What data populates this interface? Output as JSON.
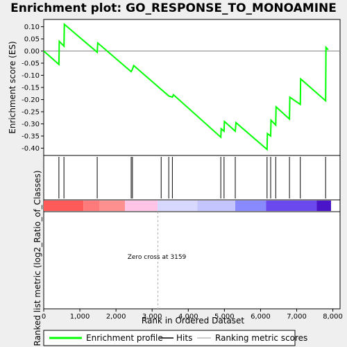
{
  "chart_data": {
    "type": "line",
    "title": "Enrichment plot: GO_RESPONSE_TO_MONOAMINE",
    "xlabel": "Rank in Ordered Dataset",
    "ylabel_top": "Enrichment score (ES)",
    "ylabel_bottom": "Ranked list metric (log2_Ratio_of_Classes)",
    "xlim": [
      0,
      8200
    ],
    "ylim": [
      -0.43,
      0.13
    ],
    "x_ticks": [
      0,
      1000,
      2000,
      3000,
      4000,
      5000,
      6000,
      7000,
      8000
    ],
    "x_tick_labels": [
      "0",
      "1,000",
      "2,000",
      "3,000",
      "4,000",
      "5,000",
      "6,000",
      "7,000",
      "8,000"
    ],
    "y_ticks": [
      0.1,
      0.05,
      0.0,
      -0.05,
      -0.1,
      -0.15,
      -0.2,
      -0.25,
      -0.3,
      -0.35,
      -0.4
    ],
    "y_tick_labels": [
      "0.10",
      "0.05",
      "0.00",
      "-0.05",
      "-0.10",
      "-0.15",
      "-0.20",
      "-0.25",
      "-0.30",
      "-0.35",
      "-0.40"
    ],
    "grid": false,
    "zero_line": true,
    "series": [
      {
        "name": "Enrichment profile",
        "color": "#00ff00",
        "x": [
          0,
          420,
          430,
          560,
          570,
          1480,
          1495,
          2420,
          2455,
          2490,
          3460,
          3560,
          3590,
          4900,
          4910,
          4990,
          5000,
          5300,
          5320,
          6180,
          6190,
          6280,
          6290,
          6420,
          6430,
          6800,
          6810,
          7100,
          7110,
          7800,
          7810,
          7870
        ],
        "y": [
          0.0,
          -0.055,
          0.04,
          0.02,
          0.11,
          -0.005,
          0.033,
          -0.085,
          -0.075,
          -0.06,
          -0.185,
          -0.19,
          -0.18,
          -0.355,
          -0.32,
          -0.33,
          -0.29,
          -0.33,
          -0.295,
          -0.405,
          -0.34,
          -0.35,
          -0.285,
          -0.305,
          -0.23,
          -0.28,
          -0.19,
          -0.22,
          -0.115,
          -0.205,
          0.015,
          0.005
        ]
      }
    ],
    "hits": [
      420,
      560,
      1480,
      2420,
      2455,
      3250,
      3460,
      3560,
      4900,
      4990,
      5300,
      6180,
      6280,
      6420,
      6800,
      7100,
      7800
    ],
    "hits_series_name": "Hits",
    "ranking_series_name": "Ranking metric scores",
    "heatmap_segments": [
      {
        "from": 0,
        "to": 1100,
        "color": "#ff5a5a"
      },
      {
        "from": 1100,
        "to": 1550,
        "color": "#ff7a7a"
      },
      {
        "from": 1550,
        "to": 2250,
        "color": "#ff9090"
      },
      {
        "from": 2250,
        "to": 3150,
        "color": "#ffc4e6"
      },
      {
        "from": 3150,
        "to": 4250,
        "color": "#d8d8ff"
      },
      {
        "from": 4250,
        "to": 5300,
        "color": "#c4c4ff"
      },
      {
        "from": 5300,
        "to": 6150,
        "color": "#8a8aff"
      },
      {
        "from": 6150,
        "to": 7550,
        "color": "#6a4aef"
      },
      {
        "from": 7550,
        "to": 7950,
        "color": "#4a14c8"
      }
    ],
    "zero_cross_rank": 3159,
    "annotation": "Zero cross at 3159",
    "legend": [
      "Enrichment profile",
      "Hits",
      "Ranking metric scores"
    ]
  }
}
